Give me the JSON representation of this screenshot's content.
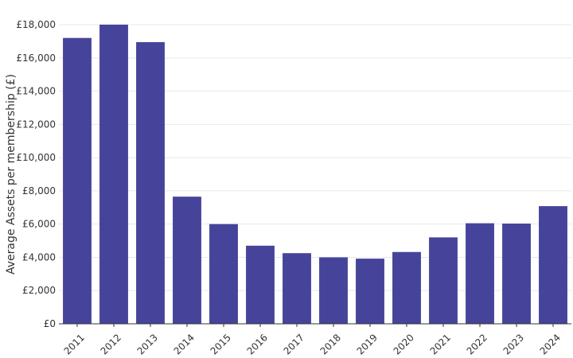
{
  "chart_data": {
    "type": "bar",
    "title": "",
    "xlabel": "",
    "ylabel": "Average Assets per membership (£)",
    "categories": [
      "2011",
      "2012",
      "2013",
      "2014",
      "2015",
      "2016",
      "2017",
      "2018",
      "2019",
      "2020",
      "2021",
      "2022",
      "2023",
      "2024"
    ],
    "values": [
      17200,
      18000,
      16950,
      7650,
      6000,
      4700,
      4250,
      4000,
      3920,
      4320,
      5200,
      6050,
      6030,
      7080
    ],
    "ylim": [
      0,
      18000
    ],
    "yticks": [
      "£0",
      "£2,000",
      "£4,000",
      "£6,000",
      "£8,000",
      "£10,000",
      "£12,000",
      "£14,000",
      "£16,000",
      "£18,000"
    ],
    "ytick_values": [
      0,
      2000,
      4000,
      6000,
      8000,
      10000,
      12000,
      14000,
      16000,
      18000
    ],
    "grid": true,
    "legend": "none",
    "colors": {
      "bar": "#46449a",
      "grid": "#e8e8e8",
      "axis": "#333333"
    }
  }
}
